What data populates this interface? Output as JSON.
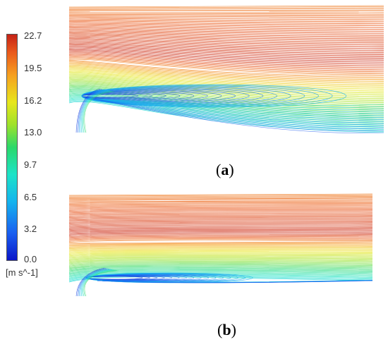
{
  "colorbar": {
    "ticks": [
      "22.7",
      "19.5",
      "16.2",
      "13.0",
      "9.7",
      "6.5",
      "3.2",
      "0.0"
    ],
    "units": "[m s^-1]",
    "colors": [
      "#0a16c8",
      "#1a5ff0",
      "#14b4ee",
      "#1de3c8",
      "#2ad86a",
      "#9ee22a",
      "#e8e61c",
      "#f6a020",
      "#ea5a1c",
      "#c42216"
    ]
  },
  "panels": [
    {
      "label": "a"
    },
    {
      "label": "b"
    }
  ]
}
